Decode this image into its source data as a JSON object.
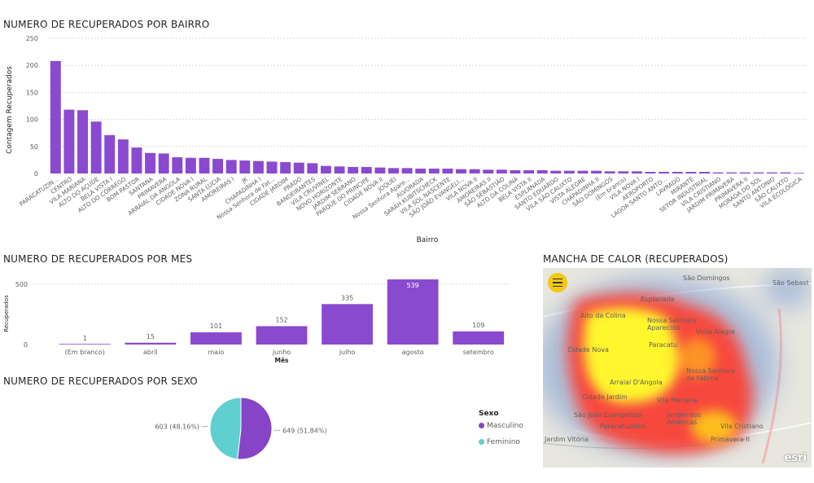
{
  "bairro_chart": {
    "title": "NUMERO DE RECUPERADOS POR BAIRRO",
    "chart_data": {
      "type": "bar",
      "xlabel": "Bairro",
      "ylabel": "Contagem Recuperados",
      "ylim": [
        0,
        250
      ],
      "yticks": [
        0,
        50,
        100,
        150,
        200,
        250
      ],
      "grid": true,
      "categories": [
        "PARACATUZIN...",
        "CENTRO",
        "VILA MARIANA",
        "ALTO DO AÇUDE",
        "BELA VISTA I",
        "ALTO DO CÓRREGO",
        "BOM PASTOR",
        "SANTANA",
        "PRIMAVERA",
        "ARRAIAL DA ANGOLA",
        "CIDADE NOVA I",
        "ZONA RURAL",
        "SANTA LÚCIA",
        "AMOREIRAS I",
        "JK",
        "CHAPADINHA I",
        "Nossa Senhora de Fat...",
        "CIDADE JARDIM",
        "PRADO",
        "BANDEIRANTES",
        "VILA CRUVINEL",
        "NOVO HORIZONTE",
        "JARDIM SERRANO",
        "PARQUE DO PRINCIPE",
        "CIDADE NOVA II",
        "JOQUEI",
        "Nossa Senhora Apare...",
        "ALVORADA",
        "SARAH KUBITSCHECK",
        "VILA SOL NASCENTE",
        "SÃO JOÃO EVANGELI...",
        "VILA NOVA II",
        "AMOREIRAS II",
        "SÃO SEBASTIÃO",
        "ALTO DA COLINA",
        "BELA VISTA II",
        "ESPLANADA",
        "SANTO EDUARDO",
        "VILA SÃO CALIXTO",
        "VISTA ALEGRE",
        "CHAPADINHA II",
        "SÃO DOMINGOS",
        "(Em branco)",
        "VILA NOVA I",
        "AEROPORTO",
        "LAGOA SANTO ANTO...",
        "LAVRADO",
        "MIRANTE",
        "SETOR INDUSTRIAL",
        "VILA CRISTIANO",
        "JARDIM PRIMAVERA",
        "PRIMAVERA II",
        "MORADA DO SOL",
        "SANTO ANTONIO",
        "SÃO CALIXTO",
        "VILA ECOLÓGICA"
      ],
      "values": [
        208,
        118,
        117,
        96,
        71,
        63,
        48,
        38,
        37,
        30,
        29,
        29,
        27,
        25,
        24,
        23,
        22,
        21,
        20,
        19,
        14,
        13,
        12,
        12,
        11,
        10,
        10,
        9,
        9,
        9,
        8,
        8,
        7,
        7,
        6,
        6,
        6,
        5,
        5,
        5,
        5,
        4,
        4,
        4,
        3,
        3,
        3,
        3,
        3,
        2,
        2,
        2,
        2,
        2,
        2,
        1
      ]
    }
  },
  "mes_chart": {
    "title": "NUMERO DE RECUPERADOS POR MES",
    "chart_data": {
      "type": "bar",
      "xlabel": "Mês",
      "ylabel": "Recuperados",
      "ylim": [
        0,
        600
      ],
      "yticks": [
        0,
        500
      ],
      "grid": true,
      "categories": [
        "(Em branco)",
        "abril",
        "maio",
        "junho",
        "julho",
        "agosto",
        "setembro"
      ],
      "values": [
        1,
        15,
        101,
        152,
        335,
        539,
        109
      ]
    }
  },
  "sexo_chart": {
    "title": "NUMERO DE RECUPERADOS POR SEXO",
    "chart_data": {
      "type": "pie",
      "legend_title": "Sexo",
      "legend_position": "right",
      "slices": [
        {
          "name": "Masculino",
          "value": 649,
          "label": "649 (51,84%)",
          "color": "#8644c8"
        },
        {
          "name": "Feminino",
          "value": 603,
          "label": "603 (48,16%)",
          "color": "#5fcfcf"
        }
      ]
    }
  },
  "map": {
    "title": "MANCHA DE CALOR (RECUPERADOS)",
    "logo": "esri",
    "menu_icon": "hamburger-icon",
    "labels": [
      "São Domingos",
      "São Sebast",
      "Alto da Colina",
      "Esplanada",
      "Nossa Senhora Aparecida",
      "Vista Alegre",
      "Paracatu",
      "Cidade Nova",
      "Nossa Senhora de Fátima",
      "Arraial D'Angola",
      "Cidade Jardim",
      "Vila Mariana",
      "São João Evangelista",
      "Jardim dos Américas",
      "Paracatuzinho",
      "Vila Cristiano",
      "Primavera II",
      "Jardim Vitória"
    ]
  },
  "colors": {
    "bar": "#8a4ad0",
    "bar_dark": "#7b3fc4",
    "grid": "#d9d9d9",
    "axis_text": "#605e5c"
  }
}
